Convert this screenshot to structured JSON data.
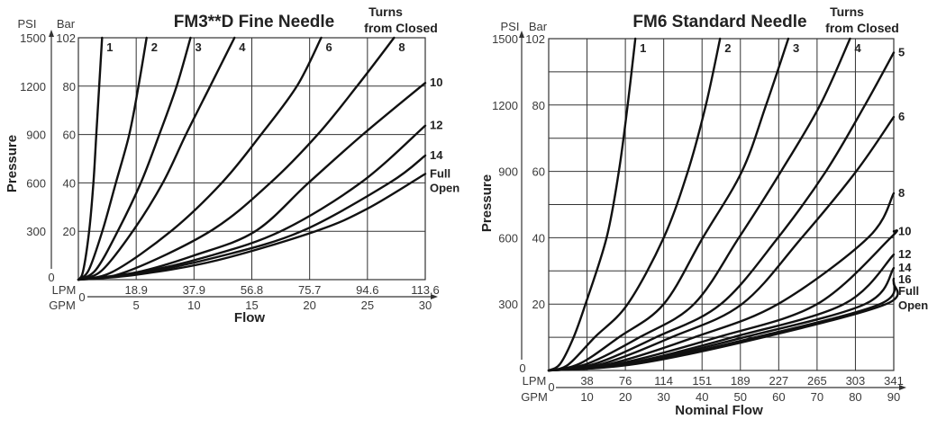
{
  "chart_data": [
    {
      "type": "line",
      "title": "FM3**D Fine Needle",
      "legend_title": [
        "Turns",
        "from Closed"
      ],
      "ylabel": "Pressure",
      "y_units": [
        "PSI",
        "Bar"
      ],
      "xlabel": "Flow",
      "x_units": [
        "LPM",
        "GPM"
      ],
      "x_zero": "0",
      "y_zero": "0",
      "xlim_gpm": [
        0,
        30
      ],
      "ylim_psi": [
        0,
        1500
      ],
      "grid": true,
      "x_ticks": [
        {
          "gpm": 5,
          "gpm_label": "5",
          "lpm_label": "18.9"
        },
        {
          "gpm": 10,
          "gpm_label": "10",
          "lpm_label": "37.9"
        },
        {
          "gpm": 15,
          "gpm_label": "15",
          "lpm_label": "56.8"
        },
        {
          "gpm": 20,
          "gpm_label": "20",
          "lpm_label": "75.7"
        },
        {
          "gpm": 25,
          "gpm_label": "25",
          "lpm_label": "94.6"
        },
        {
          "gpm": 30,
          "gpm_label": "30",
          "lpm_label": "113.6"
        }
      ],
      "y_ticks": [
        {
          "psi": 1500,
          "psi_label": "1500",
          "bar_label": "102"
        },
        {
          "psi": 1200,
          "psi_label": "1200",
          "bar_label": "80"
        },
        {
          "psi": 900,
          "psi_label": "900",
          "bar_label": "60"
        },
        {
          "psi": 600,
          "psi_label": "600",
          "bar_label": "40"
        },
        {
          "psi": 300,
          "psi_label": "300",
          "bar_label": "20"
        }
      ],
      "y_grid_psi": [
        300,
        600,
        900,
        1200
      ],
      "series": [
        {
          "name": "1",
          "points": [
            [
              0,
              0
            ],
            [
              0.4,
              50
            ],
            [
              0.93,
              300
            ],
            [
              1.3,
              600
            ],
            [
              1.55,
              900
            ],
            [
              1.8,
              1200
            ],
            [
              2.05,
              1500
            ]
          ]
        },
        {
          "name": "2",
          "points": [
            [
              0,
              0
            ],
            [
              0.9,
              60
            ],
            [
              2.07,
              300
            ],
            [
              3.24,
              600
            ],
            [
              4.4,
              900
            ],
            [
              5.2,
              1200
            ],
            [
              5.9,
              1500
            ]
          ]
        },
        {
          "name": "3",
          "points": [
            [
              0,
              0
            ],
            [
              1.5,
              60
            ],
            [
              3.4,
              300
            ],
            [
              5.4,
              600
            ],
            [
              7.0,
              900
            ],
            [
              8.5,
              1200
            ],
            [
              9.7,
              1500
            ]
          ]
        },
        {
          "name": "4",
          "points": [
            [
              0,
              0
            ],
            [
              2,
              55
            ],
            [
              4.7,
              300
            ],
            [
              7.3,
              600
            ],
            [
              9.3,
              900
            ],
            [
              11.4,
              1200
            ],
            [
              13.5,
              1500
            ]
          ]
        },
        {
          "name": "6",
          "points": [
            [
              0,
              0
            ],
            [
              3,
              50
            ],
            [
              8.0,
              300
            ],
            [
              12.4,
              600
            ],
            [
              15.8,
              900
            ],
            [
              18.9,
              1200
            ],
            [
              21.0,
              1500
            ]
          ]
        },
        {
          "name": "8",
          "points": [
            [
              0,
              0
            ],
            [
              4,
              45
            ],
            [
              11.4,
              300
            ],
            [
              16.6,
              600
            ],
            [
              20.7,
              900
            ],
            [
              24.1,
              1200
            ],
            [
              27.3,
              1500
            ]
          ]
        },
        {
          "name": "10",
          "points": [
            [
              0,
              0
            ],
            [
              5,
              45
            ],
            [
              10,
              150
            ],
            [
              15.3,
              300
            ],
            [
              19.9,
              600
            ],
            [
              24.6,
              900
            ],
            [
              30,
              1220
            ]
          ]
        },
        {
          "name": "12",
          "points": [
            [
              0,
              0
            ],
            [
              5,
              40
            ],
            [
              11,
              140
            ],
            [
              17.5,
              300
            ],
            [
              24.4,
              600
            ],
            [
              30,
              955
            ]
          ]
        },
        {
          "name": "14",
          "points": [
            [
              0,
              0
            ],
            [
              5,
              35
            ],
            [
              12,
              140
            ],
            [
              19.3,
              300
            ],
            [
              26.9,
              600
            ],
            [
              30,
              770
            ]
          ]
        },
        {
          "name": "Full Open",
          "points": [
            [
              0,
              0
            ],
            [
              5,
              30
            ],
            [
              12,
              120
            ],
            [
              20.5,
              300
            ],
            [
              25,
              440
            ],
            [
              30,
              656
            ]
          ]
        }
      ]
    },
    {
      "type": "line",
      "title": "FM6 Standard Needle",
      "legend_title": [
        "Turns",
        "from Closed"
      ],
      "ylabel": "Pressure",
      "y_units": [
        "PSI",
        "Bar"
      ],
      "xlabel": "Nominal Flow",
      "x_units": [
        "LPM",
        "GPM"
      ],
      "x_zero": "0",
      "y_zero": "0",
      "xlim_gpm": [
        0,
        90
      ],
      "ylim_psi": [
        0,
        1500
      ],
      "grid": true,
      "x_ticks": [
        {
          "gpm": 10,
          "gpm_label": "10",
          "lpm_label": "38"
        },
        {
          "gpm": 20,
          "gpm_label": "20",
          "lpm_label": "76"
        },
        {
          "gpm": 30,
          "gpm_label": "30",
          "lpm_label": "114"
        },
        {
          "gpm": 40,
          "gpm_label": "40",
          "lpm_label": "151"
        },
        {
          "gpm": 50,
          "gpm_label": "50",
          "lpm_label": "189"
        },
        {
          "gpm": 60,
          "gpm_label": "60",
          "lpm_label": "227"
        },
        {
          "gpm": 70,
          "gpm_label": "70",
          "lpm_label": "265"
        },
        {
          "gpm": 80,
          "gpm_label": "80",
          "lpm_label": "303"
        },
        {
          "gpm": 90,
          "gpm_label": "90",
          "lpm_label": "341"
        }
      ],
      "y_ticks": [
        {
          "psi": 1500,
          "psi_label": "1500",
          "bar_label": "102"
        },
        {
          "psi": 1200,
          "psi_label": "1200",
          "bar_label": "80"
        },
        {
          "psi": 900,
          "psi_label": "900",
          "bar_label": "60"
        },
        {
          "psi": 600,
          "psi_label": "600",
          "bar_label": "40"
        },
        {
          "psi": 300,
          "psi_label": "300",
          "bar_label": "20"
        }
      ],
      "y_grid_psi": [
        150,
        300,
        450,
        600,
        750,
        900,
        1050,
        1200,
        1350
      ],
      "series": [
        {
          "name": "1",
          "points": [
            [
              0,
              0
            ],
            [
              3,
              30
            ],
            [
              6.5,
              150
            ],
            [
              9.6,
              300
            ],
            [
              15.1,
              600
            ],
            [
              18.3,
              900
            ],
            [
              20.6,
              1200
            ],
            [
              22.6,
              1500
            ]
          ]
        },
        {
          "name": "2",
          "points": [
            [
              0,
              0
            ],
            [
              5,
              25
            ],
            [
              12,
              150
            ],
            [
              20.6,
              300
            ],
            [
              30,
              600
            ],
            [
              36.3,
              900
            ],
            [
              41,
              1200
            ],
            [
              44.7,
              1500
            ]
          ]
        },
        {
          "name": "3",
          "points": [
            [
              0,
              0
            ],
            [
              8,
              30
            ],
            [
              18.3,
              150
            ],
            [
              30,
              300
            ],
            [
              40.2,
              600
            ],
            [
              50.4,
              900
            ],
            [
              56.7,
              1200
            ],
            [
              62.5,
              1500
            ]
          ]
        },
        {
          "name": "4",
          "points": [
            [
              0,
              0
            ],
            [
              10,
              30
            ],
            [
              23.7,
              150
            ],
            [
              37.9,
              300
            ],
            [
              49.6,
              600
            ],
            [
              60.6,
              900
            ],
            [
              70.8,
              1200
            ],
            [
              78.6,
              1500
            ]
          ]
        },
        {
          "name": "5",
          "points": [
            [
              0,
              0
            ],
            [
              12,
              30
            ],
            [
              28,
              150
            ],
            [
              44.9,
              300
            ],
            [
              59.8,
              600
            ],
            [
              72.3,
              900
            ],
            [
              82.5,
              1200
            ],
            [
              90,
              1437
            ]
          ]
        },
        {
          "name": "6",
          "points": [
            [
              0,
              0
            ],
            [
              14,
              30
            ],
            [
              32,
              150
            ],
            [
              50.4,
              300
            ],
            [
              66,
              600
            ],
            [
              80.2,
              900
            ],
            [
              90,
              1146
            ]
          ]
        },
        {
          "name": "8",
          "points": [
            [
              0,
              0
            ],
            [
              16,
              30
            ],
            [
              38,
              150
            ],
            [
              59.8,
              300
            ],
            [
              83.3,
              600
            ],
            [
              90,
              801
            ]
          ]
        },
        {
          "name": "10",
          "points": [
            [
              0,
              0
            ],
            [
              18,
              30
            ],
            [
              44,
              150
            ],
            [
              70,
              300
            ],
            [
              89.2,
              600
            ],
            [
              90,
              629
            ]
          ]
        },
        {
          "name": "12",
          "points": [
            [
              0,
              0
            ],
            [
              20,
              30
            ],
            [
              48,
              150
            ],
            [
              77,
              300
            ],
            [
              90,
              524
            ]
          ]
        },
        {
          "name": "14",
          "points": [
            [
              0,
              0
            ],
            [
              21,
              30
            ],
            [
              51,
              150
            ],
            [
              82.5,
              300
            ],
            [
              90,
              463
            ]
          ]
        },
        {
          "name": "16",
          "points": [
            [
              0,
              0
            ],
            [
              22,
              30
            ],
            [
              54,
              150
            ],
            [
              86.4,
              300
            ],
            [
              90,
              415
            ]
          ]
        },
        {
          "name": "Full Open",
          "points": [
            [
              0,
              0
            ],
            [
              23,
              30
            ],
            [
              56,
              150
            ],
            [
              88,
              300
            ],
            [
              90,
              395
            ]
          ]
        }
      ]
    }
  ]
}
